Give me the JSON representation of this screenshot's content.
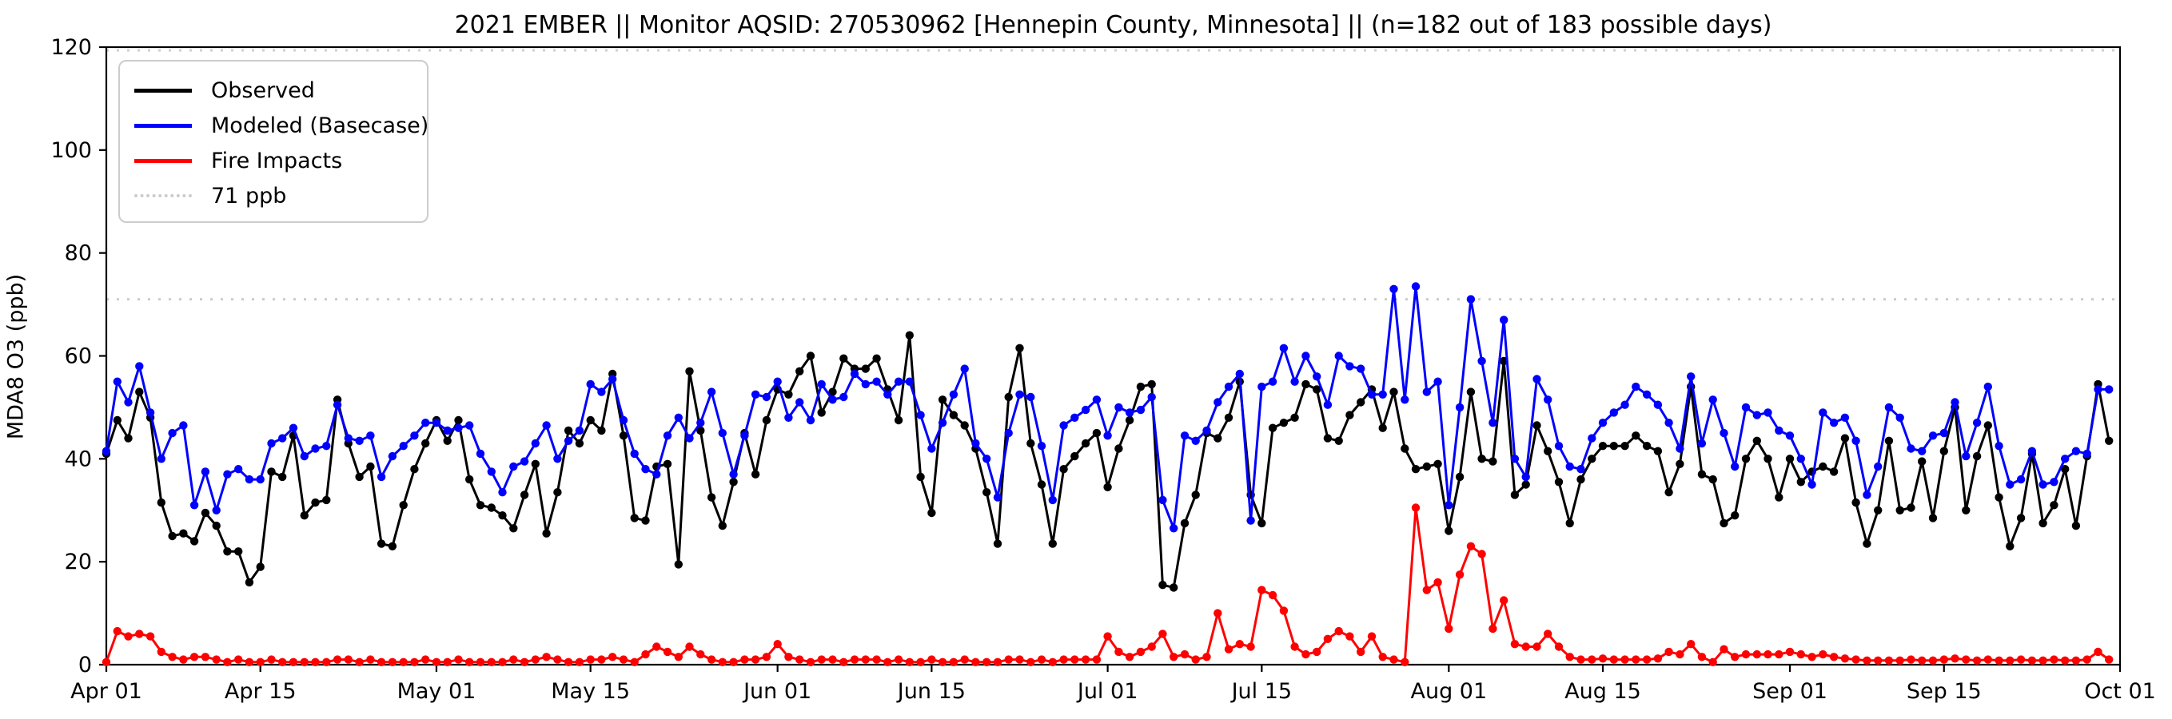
{
  "title": "2021 EMBER || Monitor AQSID: 270530962 [Hennepin County, Minnesota] || (n=182 out of 183 possible days)",
  "y_axis": {
    "label": "MDA8 O3 (ppb)",
    "ticks": [
      0,
      20,
      40,
      60,
      80,
      100,
      120
    ]
  },
  "x_axis": {
    "ticks": [
      {
        "label": "Apr 01",
        "day": 0
      },
      {
        "label": "Apr 15",
        "day": 14
      },
      {
        "label": "May 01",
        "day": 30
      },
      {
        "label": "May 15",
        "day": 44
      },
      {
        "label": "Jun 01",
        "day": 61
      },
      {
        "label": "Jun 15",
        "day": 75
      },
      {
        "label": "Jul 01",
        "day": 91
      },
      {
        "label": "Jul 15",
        "day": 105
      },
      {
        "label": "Aug 01",
        "day": 122
      },
      {
        "label": "Aug 15",
        "day": 136
      },
      {
        "label": "Sep 01",
        "day": 153
      },
      {
        "label": "Sep 15",
        "day": 167
      },
      {
        "label": "Oct 01",
        "day": 183
      }
    ]
  },
  "legend": {
    "items": [
      {
        "label": "Observed",
        "color": "#000000",
        "style": "solid"
      },
      {
        "label": "Modeled (Basecase)",
        "color": "#0000ff",
        "style": "solid"
      },
      {
        "label": "Fire Impacts",
        "color": "#ff0000",
        "style": "solid"
      },
      {
        "label": "71 ppb",
        "color": "#cccccc",
        "style": "dotted"
      }
    ]
  },
  "chart_data": {
    "type": "line",
    "x_start": "Apr 01 2021",
    "x_end": "Sep 30 2021",
    "n_days": 183,
    "ylim": [
      0,
      120
    ],
    "ylabel": "MDA8 O3 (ppb)",
    "grid": false,
    "legend_position": "upper left",
    "reference_line": {
      "label": "71 ppb",
      "value": 71,
      "color": "#cccccc",
      "style": "dotted"
    },
    "series": [
      {
        "name": "Observed",
        "color": "#000000",
        "values": [
          41,
          47.5,
          44,
          53,
          48,
          31.5,
          25,
          25.5,
          24,
          29.5,
          27,
          22,
          22,
          16,
          19,
          37.5,
          36.5,
          44.5,
          29,
          31.5,
          32,
          51.5,
          43,
          36.5,
          38.5,
          23.5,
          23,
          31,
          38,
          43,
          47.5,
          43.5,
          47.5,
          36,
          31,
          30.5,
          29,
          26.5,
          33,
          39,
          25.5,
          33.5,
          45.5,
          43,
          47.5,
          45.5,
          56.5,
          44.5,
          28.5,
          28,
          38.5,
          39,
          19.5,
          57,
          45.5,
          32.5,
          27,
          35.5,
          45,
          37,
          47.5,
          53.5,
          52.5,
          57,
          60,
          49,
          53,
          59.5,
          57.5,
          57.5,
          59.5,
          53.5,
          47.5,
          64,
          36.5,
          29.5,
          51.5,
          48.5,
          46.5,
          42,
          33.5,
          23.5,
          52,
          61.5,
          43,
          35,
          23.5,
          38,
          40.5,
          43,
          45,
          34.5,
          42,
          47.5,
          54,
          54.5,
          15.5,
          15,
          27.5,
          33,
          45,
          44,
          48,
          55,
          33,
          27.5,
          46,
          47,
          48,
          54.5,
          53.5,
          44,
          43.5,
          48.5,
          51,
          53.5,
          46,
          53,
          42,
          38,
          38.5,
          39,
          26,
          36.5,
          53,
          40,
          39.5,
          59,
          33,
          35,
          46.5,
          41.5,
          35.5,
          27.5,
          36,
          40,
          42.5,
          42.5,
          42.5,
          44.5,
          42.5,
          41.5,
          33.5,
          39,
          54,
          37,
          36,
          27.5,
          29,
          40,
          43.5,
          40,
          32.5,
          40,
          35.5,
          37.5,
          38.5,
          37.5,
          44,
          31.5,
          23.5,
          30,
          43.5,
          30,
          30.5,
          39.5,
          28.5,
          41.5,
          50,
          30,
          40.5,
          46.5,
          32.5,
          23,
          28.5,
          41,
          27.5,
          31,
          38,
          27,
          40.5,
          54.5,
          43.5
        ]
      },
      {
        "name": "Modeled (Basecase)",
        "color": "#0000ff",
        "values": [
          41.5,
          55,
          51,
          58,
          49,
          40,
          45,
          46.5,
          31,
          37.5,
          30,
          37,
          38,
          36,
          36,
          43,
          44,
          46,
          40.5,
          42,
          42.5,
          50.5,
          44,
          43.5,
          44.5,
          36.5,
          40.5,
          42.5,
          44.5,
          47,
          47,
          45.5,
          46,
          46.5,
          41,
          37.5,
          33.5,
          38.5,
          39.5,
          43,
          46.5,
          40,
          43.5,
          45.5,
          54.5,
          53,
          55.5,
          47.5,
          41,
          38,
          37,
          44.5,
          48,
          44,
          47,
          53,
          45,
          37,
          44.5,
          52.5,
          52,
          55,
          48,
          51,
          47.5,
          54.5,
          51.5,
          52,
          56.5,
          54.5,
          55,
          52.5,
          55,
          55,
          48.5,
          42,
          47,
          52.5,
          57.5,
          43,
          40,
          32.5,
          45,
          52.5,
          52,
          42.5,
          32,
          46.5,
          48,
          49.5,
          51.5,
          44.5,
          50,
          49,
          49.5,
          52,
          32,
          26.5,
          44.5,
          43.5,
          45.5,
          51,
          54,
          56.5,
          28,
          54,
          55,
          61.5,
          55,
          60,
          56,
          50.5,
          60,
          58,
          57.5,
          52.5,
          52.5,
          73,
          51.5,
          73.5,
          53,
          55,
          31,
          50,
          71,
          59,
          47,
          67,
          40,
          36.5,
          55.5,
          51.5,
          42.5,
          38.5,
          38,
          44,
          47,
          49,
          50.5,
          54,
          52.5,
          50.5,
          47,
          42,
          56,
          43,
          51.5,
          45,
          38.5,
          50,
          48.5,
          49,
          45.5,
          44.5,
          40,
          35,
          49,
          47,
          48,
          43.5,
          33,
          38.5,
          50,
          48,
          42,
          41.5,
          44.5,
          45,
          51,
          40.5,
          47,
          54,
          42.5,
          35,
          36,
          41.5,
          35,
          35.5,
          40,
          41.5,
          41,
          53.5,
          53.5
        ]
      },
      {
        "name": "Fire Impacts",
        "color": "#ff0000",
        "values": [
          0.5,
          6.5,
          5.5,
          6,
          5.5,
          2.5,
          1.5,
          1,
          1.5,
          1.5,
          1,
          0.5,
          1,
          0.5,
          0.5,
          1,
          0.5,
          0.5,
          0.5,
          0.5,
          0.5,
          1,
          1,
          0.5,
          1,
          0.5,
          0.5,
          0.5,
          0.5,
          1,
          0.5,
          0.5,
          1,
          0.5,
          0.5,
          0.5,
          0.5,
          1,
          0.5,
          1,
          1.5,
          1,
          0.5,
          0.5,
          1,
          1,
          1.5,
          1,
          0.5,
          2,
          3.5,
          2.5,
          1.5,
          3.5,
          2,
          1,
          0.5,
          0.5,
          1,
          1,
          1.5,
          4,
          1.5,
          1,
          0.5,
          1,
          1,
          0.5,
          1,
          1,
          1,
          0.5,
          1,
          0.5,
          0.5,
          1,
          0.5,
          0.5,
          1,
          0.5,
          0.5,
          0.5,
          1,
          1,
          0.5,
          1,
          0.5,
          1,
          1,
          1,
          1,
          5.5,
          2.5,
          1.5,
          2.5,
          3.5,
          6,
          1.5,
          2,
          1,
          1.5,
          10,
          3,
          4,
          3.5,
          14.5,
          13.5,
          10.5,
          3.5,
          2,
          2.5,
          5,
          6.5,
          5.5,
          2.5,
          5.5,
          1.5,
          1,
          0.5,
          30.5,
          14.5,
          16,
          7,
          17.5,
          23,
          21.5,
          7,
          12.5,
          4,
          3.5,
          3.5,
          6,
          3.5,
          1.5,
          1,
          1,
          1.2,
          1,
          1,
          1,
          1,
          1.2,
          2.5,
          2,
          4,
          1.5,
          0.5,
          3,
          1.5,
          2,
          2,
          2,
          2,
          2.5,
          2,
          1.5,
          2,
          1.5,
          1.2,
          1,
          0.8,
          0.8,
          0.8,
          0.8,
          1,
          0.8,
          0.8,
          1,
          1.2,
          1,
          0.8,
          1,
          0.8,
          0.8,
          1,
          0.8,
          0.8,
          1,
          0.8,
          0.8,
          1,
          2.5,
          1
        ]
      }
    ]
  }
}
